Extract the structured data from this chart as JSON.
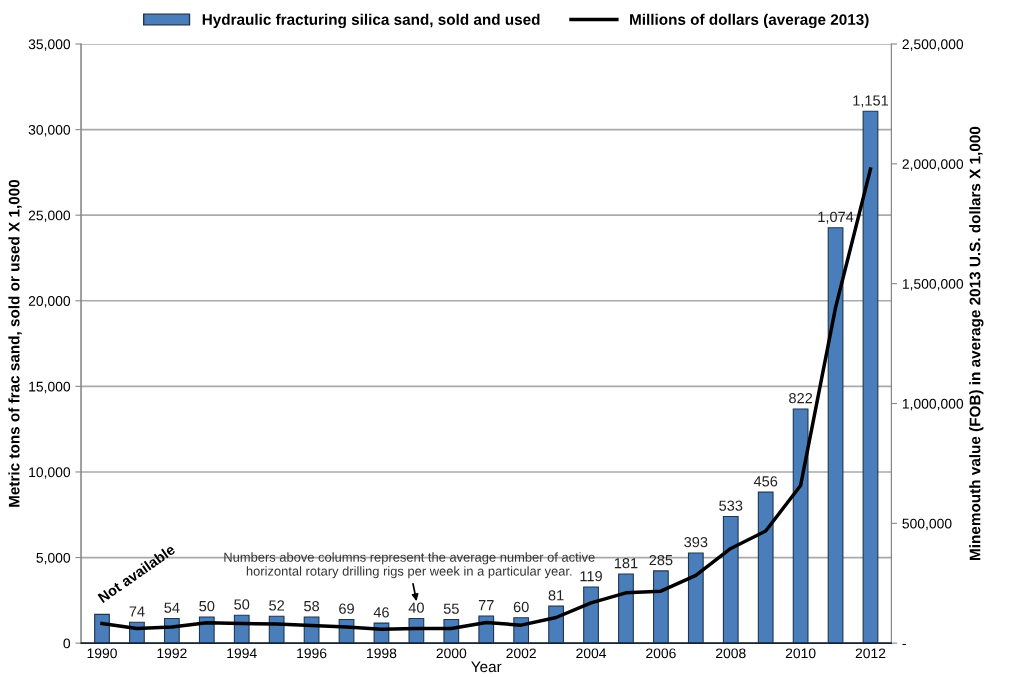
{
  "chart_data": {
    "type": "bar",
    "xlabel": "Year",
    "ylabel": "Metric tons of frac sand, sold or used X 1,000",
    "y2label": "Minemouth value (FOB) in average 2013 U.S. dollars X 1,000",
    "x": [
      1990,
      1991,
      1992,
      1993,
      1994,
      1995,
      1996,
      1997,
      1998,
      1999,
      2000,
      2001,
      2002,
      2003,
      2004,
      2005,
      2006,
      2007,
      2008,
      2009,
      2010,
      2011,
      2012
    ],
    "series": [
      {
        "name": "Hydraulic fracturing silica sand, sold and used",
        "color": "#4a7ebb",
        "values": [
          1680,
          1220,
          1440,
          1530,
          1630,
          1570,
          1530,
          1380,
          1170,
          1440,
          1380,
          1590,
          1480,
          2160,
          3280,
          4040,
          4220,
          5270,
          7400,
          8820,
          13680,
          24270,
          31070
        ]
      },
      {
        "name": "Millions of dollars (average 2013)",
        "type": "line",
        "axis": "y2",
        "color": "#000000",
        "values": [
          82000,
          61000,
          67000,
          85000,
          82000,
          80000,
          74000,
          67000,
          58000,
          61000,
          61000,
          86000,
          75000,
          107000,
          168000,
          210000,
          217000,
          283000,
          395000,
          468000,
          658000,
          1400000,
          1978000
        ]
      }
    ],
    "xlim": [
      1989.4,
      2012.6
    ],
    "xticks": [
      1990,
      1992,
      1994,
      1996,
      1998,
      2000,
      2002,
      2004,
      2006,
      2008,
      2010,
      2012
    ],
    "ylim": [
      0,
      35000
    ],
    "yticks": [
      {
        "value": 0,
        "label": "0"
      },
      {
        "value": 5000,
        "label": "5,000"
      },
      {
        "value": 10000,
        "label": "10,000"
      },
      {
        "value": 15000,
        "label": "15,000"
      },
      {
        "value": 20000,
        "label": "20,000"
      },
      {
        "value": 25000,
        "label": "25,000"
      },
      {
        "value": 30000,
        "label": "30,000"
      },
      {
        "value": 35000,
        "label": "35,000"
      }
    ],
    "y2lim": [
      0,
      2500000
    ],
    "y2ticks": [
      {
        "value": 0,
        "label": "-"
      },
      {
        "value": 500000,
        "label": "500,000"
      },
      {
        "value": 1000000,
        "label": "1,000,000"
      },
      {
        "value": 1500000,
        "label": "1,500,000"
      },
      {
        "value": 2000000,
        "label": "2,000,000"
      },
      {
        "value": 2500000,
        "label": "2,500,000"
      }
    ],
    "annotations": [
      {
        "text": "Not available",
        "x": 1990,
        "y": 1680
      },
      {
        "text": "74",
        "x": 1991,
        "y": 1220
      },
      {
        "text": "54",
        "x": 1992,
        "y": 1440
      },
      {
        "text": "50",
        "x": 1993,
        "y": 1530
      },
      {
        "text": "50",
        "x": 1994,
        "y": 1630
      },
      {
        "text": "52",
        "x": 1995,
        "y": 1570
      },
      {
        "text": "58",
        "x": 1996,
        "y": 1530
      },
      {
        "text": "69",
        "x": 1997,
        "y": 1380
      },
      {
        "text": "46",
        "x": 1998,
        "y": 1170
      },
      {
        "text": "40",
        "x": 1999,
        "y": 1440
      },
      {
        "text": "55",
        "x": 2000,
        "y": 1380
      },
      {
        "text": "77",
        "x": 2001,
        "y": 1590
      },
      {
        "text": "60",
        "x": 2002,
        "y": 1480
      },
      {
        "text": "81",
        "x": 2003,
        "y": 2160
      },
      {
        "text": "119",
        "x": 2004,
        "y": 3280
      },
      {
        "text": "181",
        "x": 2005,
        "y": 4040
      },
      {
        "text": "285",
        "x": 2006,
        "y": 4220
      },
      {
        "text": "393",
        "x": 2007,
        "y": 5270
      },
      {
        "text": "533",
        "x": 2008,
        "y": 7400
      },
      {
        "text": "456",
        "x": 2009,
        "y": 8820
      },
      {
        "text": "822",
        "x": 2010,
        "y": 13680
      },
      {
        "text": "1,074",
        "x": 2011,
        "y": 24270
      },
      {
        "text": "1,151",
        "x": 2012,
        "y": 31070
      },
      "Numbers above columns represent the average number of active\nhorizontal rotary drilling rigs per week in a particular year."
    ],
    "grid": "y",
    "legend": "top",
    "line_style": "solid",
    "marker": "none"
  }
}
